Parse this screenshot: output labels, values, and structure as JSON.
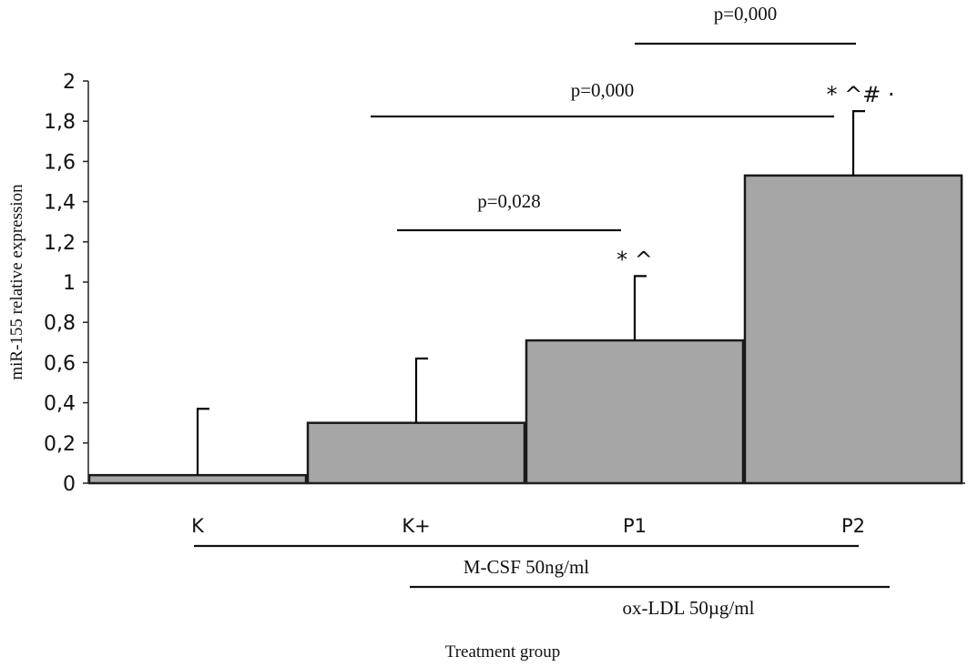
{
  "chart_data": {
    "type": "bar",
    "title": "",
    "xlabel": "Treatment group",
    "ylabel": "miR-155 relative expression",
    "ylim": [
      0,
      2
    ],
    "yticks": [
      0,
      0.2,
      0.4,
      0.6,
      0.8,
      1,
      1.2,
      1.4,
      1.6,
      1.8,
      2
    ],
    "ytick_labels": [
      "0",
      "0,2",
      "0,4",
      "0,6",
      "0,8",
      "1",
      "1,2",
      "1,4",
      "1,6",
      "1,8",
      "2"
    ],
    "categories": [
      "K",
      "K+",
      "P1",
      "P2"
    ],
    "values": [
      0.04,
      0.3,
      0.71,
      1.53
    ],
    "error_upper": [
      0.37,
      0.62,
      1.03,
      1.85
    ],
    "significance_markers": [
      "",
      "",
      "* ^",
      "* ^# ·"
    ],
    "grid": false,
    "comparisons": [
      {
        "from": "K+",
        "to": "P1",
        "label": "p=0,028"
      },
      {
        "from": "K+",
        "to": "P2",
        "label": "p=0,000"
      },
      {
        "from": "P1",
        "to": "P2",
        "label": "p=0,000"
      }
    ],
    "treatments": [
      {
        "label": "M-CSF 50ng/ml",
        "applies_to": [
          "K",
          "K+",
          "P1",
          "P2"
        ]
      },
      {
        "label": "ox-LDL 50µg/ml",
        "applies_to": [
          "K+",
          "P1",
          "P2"
        ]
      }
    ],
    "colors": {
      "bar_fill": "#a6a6a6",
      "bar_stroke": "#1a1a1a",
      "axis": "#222222",
      "text": "#111111"
    }
  }
}
